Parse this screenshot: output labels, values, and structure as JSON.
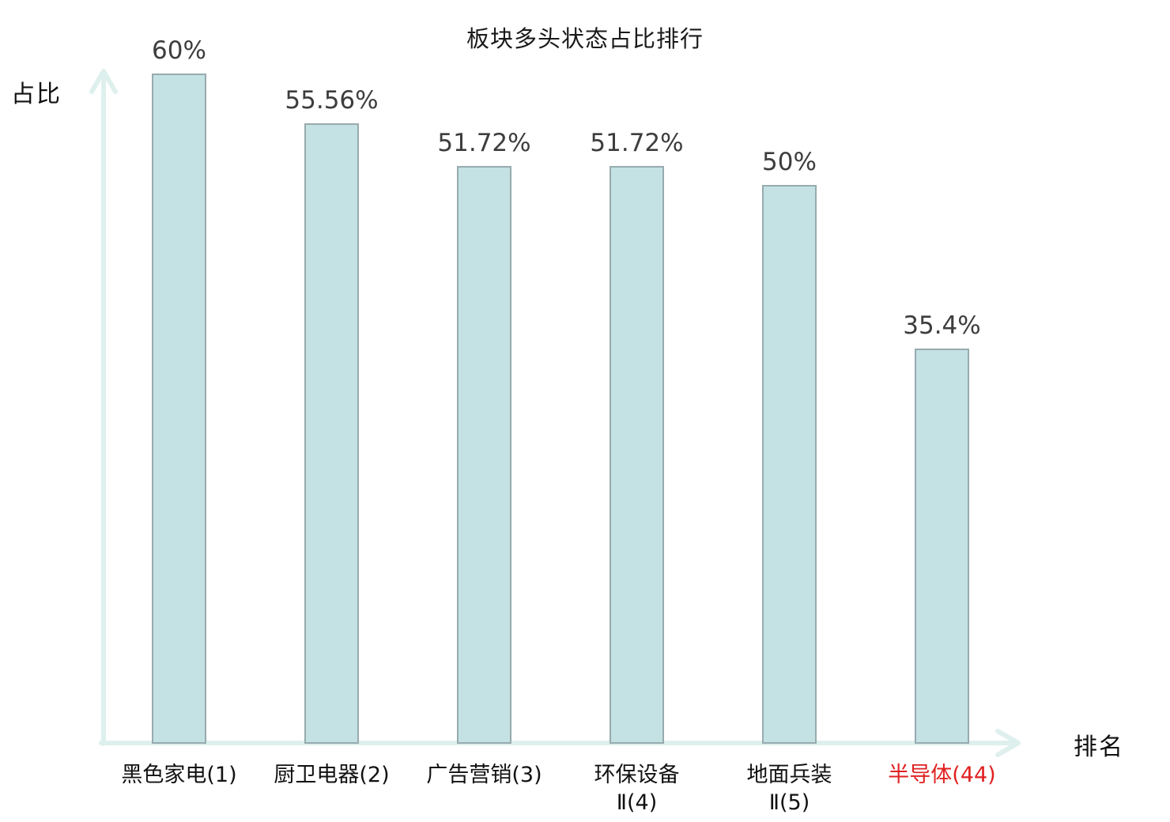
{
  "chart_data": {
    "type": "bar",
    "title": "板块多头状态占比排行",
    "xlabel": "排名",
    "ylabel": "占比",
    "categories": [
      "黑色家电(1)",
      "厨卫电器(2)",
      "广告营销(3)",
      "环保设备\nⅡ(4)",
      "地面兵装\nⅡ(5)",
      "半导体(44)"
    ],
    "values": [
      60,
      55.56,
      51.72,
      51.72,
      50,
      35.4
    ],
    "value_labels": [
      "60%",
      "55.56%",
      "51.72%",
      "51.72%",
      "50%",
      "35.4%"
    ],
    "ylim": [
      0,
      60
    ],
    "grid": false,
    "legend": null,
    "highlight_index": 5,
    "highlight_color": "#e02020",
    "colors": {
      "bar_fill": "#c4e1e4",
      "bar_border": "#97abae",
      "axis": "#def0ed",
      "value_text": "#3d3d3d",
      "category_text": "#111111"
    }
  }
}
